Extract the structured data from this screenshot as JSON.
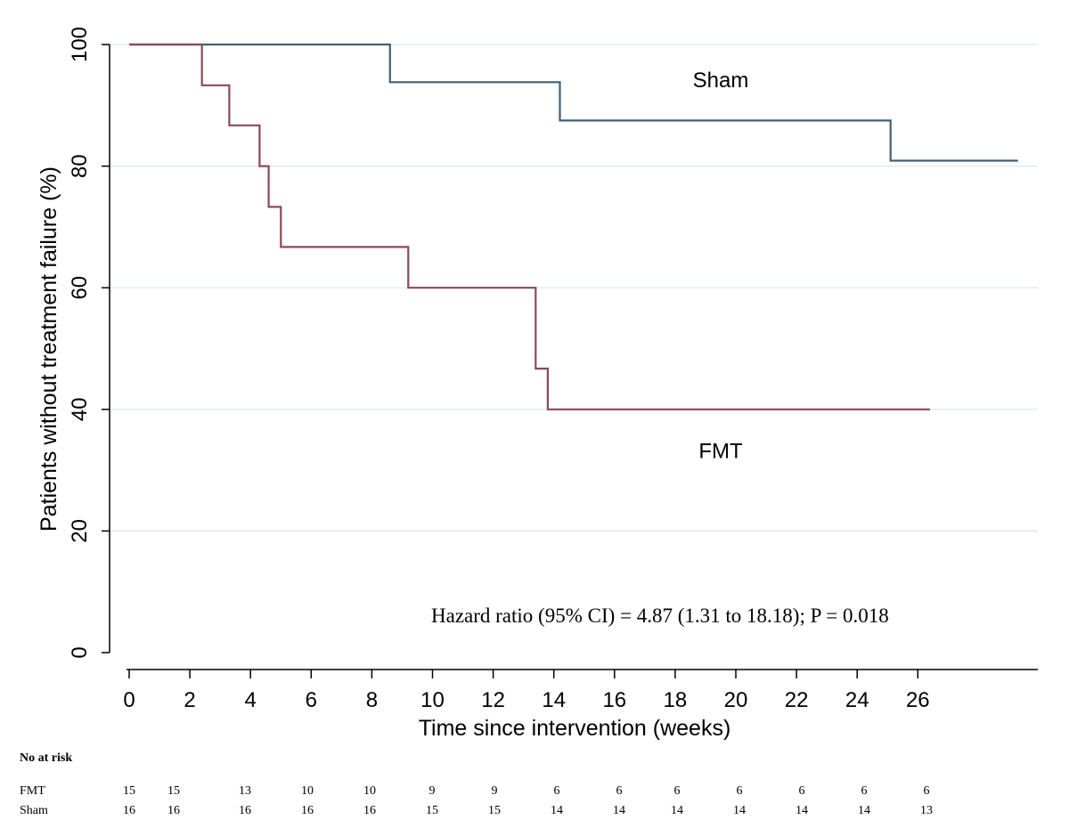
{
  "chart_data": {
    "type": "line",
    "subtype": "kaplan-meier-step",
    "title": "",
    "xlabel": "Time since intervention (weeks)",
    "ylabel": "Patients without treatment failure (%)",
    "xlim": [
      0,
      29
    ],
    "ylim": [
      0,
      100
    ],
    "x_ticks": [
      0,
      2,
      4,
      6,
      8,
      10,
      12,
      14,
      16,
      18,
      20,
      22,
      24,
      26
    ],
    "y_ticks": [
      0,
      20,
      40,
      60,
      80,
      100
    ],
    "grid": "horizontal",
    "series": [
      {
        "name": "Sham",
        "color": "#3f5f77",
        "points": [
          [
            0,
            100
          ],
          [
            8.6,
            100
          ],
          [
            8.6,
            93.8
          ],
          [
            14.2,
            93.8
          ],
          [
            14.2,
            87.5
          ],
          [
            25.1,
            87.5
          ],
          [
            25.1,
            80.9
          ],
          [
            29.3,
            80.9
          ]
        ]
      },
      {
        "name": "FMT",
        "color": "#8b4a55",
        "points": [
          [
            0,
            100
          ],
          [
            2.4,
            100
          ],
          [
            2.4,
            93.3
          ],
          [
            3.3,
            93.3
          ],
          [
            3.3,
            86.7
          ],
          [
            4.3,
            86.7
          ],
          [
            4.3,
            80
          ],
          [
            4.6,
            80
          ],
          [
            4.6,
            73.3
          ],
          [
            5.0,
            73.3
          ],
          [
            5.0,
            66.7
          ],
          [
            9.2,
            66.7
          ],
          [
            9.2,
            60
          ],
          [
            13.4,
            60
          ],
          [
            13.4,
            46.7
          ],
          [
            13.8,
            46.7
          ],
          [
            13.8,
            40
          ],
          [
            26.4,
            40
          ]
        ]
      }
    ],
    "series_labels": [
      {
        "text": "Sham",
        "x": 19.5,
        "y": 93
      },
      {
        "text": "FMT",
        "x": 19.5,
        "y": 32
      }
    ],
    "annotation": {
      "text": "Hazard ratio (95% CI) = 4.87 (1.31 to 18.18); P = 0.018",
      "x": 17.5,
      "y": 5
    }
  },
  "risk_table": {
    "title": "No at risk",
    "rows": [
      {
        "label": "FMT",
        "values": [
          "15",
          "15",
          "13",
          "10",
          "10",
          "9",
          "9",
          "6",
          "6",
          "6",
          "6",
          "6",
          "6",
          "6"
        ]
      },
      {
        "label": "Sham",
        "values": [
          "16",
          "16",
          "16",
          "16",
          "16",
          "15",
          "15",
          "14",
          "14",
          "14",
          "14",
          "14",
          "14",
          "13"
        ]
      }
    ]
  }
}
